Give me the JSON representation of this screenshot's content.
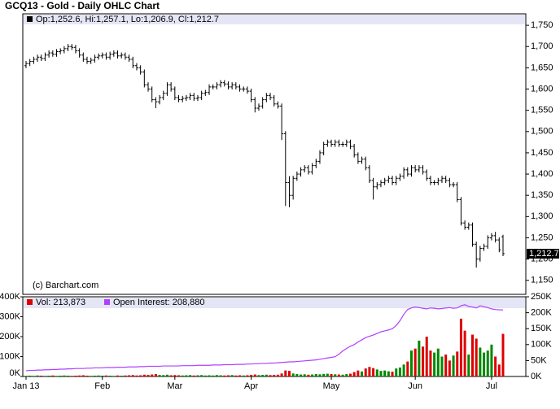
{
  "chart_data": [
    {
      "type": "ohlc",
      "title": "GCQ13 - Gold - Daily OHLC Chart",
      "annotation": "(c) Barchart.com",
      "ylim": [
        1117,
        1777
      ],
      "yticks": [
        {
          "value": 1150,
          "label": "1,150"
        },
        {
          "value": 1200,
          "label": "1,200"
        },
        {
          "value": 1250,
          "label": "1,250"
        },
        {
          "value": 1300,
          "label": "1,300"
        },
        {
          "value": 1350,
          "label": "1,350"
        },
        {
          "value": 1400,
          "label": "1,400"
        },
        {
          "value": 1450,
          "label": "1,450"
        },
        {
          "value": 1500,
          "label": "1,500"
        },
        {
          "value": 1550,
          "label": "1,550"
        },
        {
          "value": 1600,
          "label": "1,600"
        },
        {
          "value": 1650,
          "label": "1,650"
        },
        {
          "value": 1700,
          "label": "1,700"
        },
        {
          "value": 1750,
          "label": "1,750"
        }
      ],
      "last_label": {
        "value": 1212.7,
        "label": "1,212.7"
      },
      "series": [
        {
          "name": "Op:1,252.6, Hi:1,257.1, Lo:1,206.9, Cl:1,212.7",
          "color": "#000000",
          "open": [
            1655,
            1660,
            1665,
            1670,
            1675,
            1672,
            1680,
            1685,
            1682,
            1688,
            1690,
            1695,
            1700,
            1698,
            1690,
            1680,
            1670,
            1665,
            1668,
            1675,
            1678,
            1680,
            1675,
            1682,
            1685,
            1678,
            1680,
            1675,
            1670,
            1655,
            1650,
            1640,
            1610,
            1600,
            1575,
            1570,
            1580,
            1590,
            1610,
            1600,
            1580,
            1575,
            1578,
            1580,
            1585,
            1578,
            1580,
            1590,
            1592,
            1605,
            1605,
            1610,
            1615,
            1612,
            1605,
            1610,
            1605,
            1600,
            1600,
            1595,
            1575,
            1555,
            1560,
            1575,
            1585,
            1580,
            1565,
            1560,
            1495,
            1380,
            1350,
            1390,
            1400,
            1410,
            1415,
            1405,
            1420,
            1430,
            1450,
            1470,
            1475,
            1470,
            1475,
            1470,
            1470,
            1475,
            1465,
            1445,
            1430,
            1435,
            1415,
            1385,
            1370,
            1375,
            1380,
            1385,
            1390,
            1380,
            1390,
            1395,
            1410,
            1400,
            1415,
            1410,
            1415,
            1405,
            1390,
            1380,
            1380,
            1385,
            1390,
            1385,
            1375,
            1375,
            1340,
            1285,
            1275,
            1280,
            1235,
            1200,
            1225,
            1230,
            1250,
            1255,
            1245,
            1252.6
          ],
          "high": [
            1666,
            1671,
            1676,
            1681,
            1681,
            1686,
            1691,
            1691,
            1694,
            1696,
            1701,
            1706,
            1706,
            1704,
            1696,
            1686,
            1676,
            1674,
            1681,
            1684,
            1686,
            1686,
            1688,
            1691,
            1691,
            1686,
            1686,
            1681,
            1676,
            1661,
            1656,
            1646,
            1616,
            1606,
            1581,
            1586,
            1596,
            1616,
            1616,
            1606,
            1586,
            1584,
            1586,
            1591,
            1591,
            1586,
            1596,
            1598,
            1611,
            1611,
            1616,
            1621,
            1621,
            1618,
            1616,
            1616,
            1611,
            1606,
            1606,
            1601,
            1581,
            1566,
            1581,
            1591,
            1591,
            1586,
            1571,
            1566,
            1501,
            1395,
            1396,
            1406,
            1416,
            1421,
            1421,
            1426,
            1436,
            1456,
            1476,
            1481,
            1481,
            1481,
            1481,
            1476,
            1481,
            1481,
            1471,
            1451,
            1441,
            1441,
            1421,
            1391,
            1381,
            1386,
            1391,
            1396,
            1396,
            1396,
            1401,
            1416,
            1416,
            1421,
            1421,
            1421,
            1421,
            1411,
            1396,
            1386,
            1391,
            1396,
            1396,
            1391,
            1381,
            1381,
            1346,
            1291,
            1286,
            1286,
            1241,
            1231,
            1236,
            1256,
            1261,
            1264,
            1251,
            1257.1
          ],
          "low": [
            1649,
            1654,
            1659,
            1664,
            1666,
            1666,
            1674,
            1676,
            1676,
            1682,
            1684,
            1689,
            1692,
            1684,
            1674,
            1664,
            1659,
            1659,
            1662,
            1669,
            1672,
            1669,
            1669,
            1676,
            1672,
            1672,
            1669,
            1664,
            1649,
            1644,
            1634,
            1604,
            1594,
            1569,
            1555,
            1564,
            1574,
            1584,
            1594,
            1574,
            1569,
            1569,
            1572,
            1574,
            1572,
            1572,
            1574,
            1584,
            1586,
            1599,
            1599,
            1604,
            1606,
            1599,
            1599,
            1599,
            1594,
            1594,
            1589,
            1569,
            1545,
            1549,
            1554,
            1569,
            1574,
            1559,
            1554,
            1480,
            1325,
            1322,
            1340,
            1384,
            1394,
            1404,
            1399,
            1399,
            1414,
            1424,
            1444,
            1464,
            1464,
            1464,
            1464,
            1464,
            1464,
            1459,
            1439,
            1424,
            1424,
            1409,
            1379,
            1340,
            1364,
            1369,
            1374,
            1379,
            1374,
            1374,
            1384,
            1389,
            1394,
            1394,
            1404,
            1404,
            1399,
            1384,
            1374,
            1374,
            1374,
            1379,
            1379,
            1369,
            1369,
            1334,
            1279,
            1269,
            1269,
            1229,
            1180,
            1194,
            1219,
            1224,
            1244,
            1239,
            1216,
            1206.9
          ],
          "close": [
            1660,
            1665,
            1670,
            1675,
            1672,
            1680,
            1685,
            1682,
            1688,
            1690,
            1695,
            1700,
            1698,
            1690,
            1680,
            1670,
            1665,
            1668,
            1675,
            1678,
            1680,
            1675,
            1682,
            1685,
            1678,
            1680,
            1675,
            1670,
            1655,
            1650,
            1640,
            1610,
            1600,
            1575,
            1570,
            1580,
            1590,
            1610,
            1600,
            1580,
            1575,
            1578,
            1580,
            1585,
            1578,
            1580,
            1590,
            1592,
            1605,
            1605,
            1610,
            1615,
            1612,
            1605,
            1610,
            1605,
            1600,
            1600,
            1595,
            1575,
            1555,
            1560,
            1575,
            1585,
            1580,
            1565,
            1560,
            1495,
            1380,
            1350,
            1390,
            1400,
            1410,
            1415,
            1405,
            1420,
            1430,
            1450,
            1470,
            1475,
            1470,
            1475,
            1470,
            1470,
            1475,
            1465,
            1445,
            1430,
            1435,
            1415,
            1385,
            1370,
            1375,
            1380,
            1385,
            1390,
            1380,
            1390,
            1395,
            1410,
            1400,
            1415,
            1410,
            1415,
            1405,
            1390,
            1380,
            1380,
            1385,
            1390,
            1385,
            1375,
            1375,
            1340,
            1285,
            1275,
            1280,
            1235,
            1200,
            1225,
            1230,
            1250,
            1255,
            1245,
            1222,
            1212.7
          ]
        }
      ]
    },
    {
      "type": "bar",
      "categories": [
        "Jan 13",
        null,
        null,
        null,
        null,
        null,
        null,
        null,
        null,
        null,
        null,
        null,
        null,
        null,
        null,
        null,
        null,
        null,
        null,
        null,
        "Feb",
        null,
        null,
        null,
        null,
        null,
        null,
        null,
        null,
        null,
        null,
        null,
        null,
        null,
        null,
        null,
        null,
        null,
        null,
        "Mar",
        null,
        null,
        null,
        null,
        null,
        null,
        null,
        null,
        null,
        null,
        null,
        null,
        null,
        null,
        null,
        null,
        null,
        null,
        null,
        "Apr",
        null,
        null,
        null,
        null,
        null,
        null,
        null,
        null,
        null,
        null,
        null,
        null,
        null,
        null,
        null,
        null,
        null,
        null,
        null,
        null,
        "May",
        null,
        null,
        null,
        null,
        null,
        null,
        null,
        null,
        null,
        null,
        null,
        null,
        null,
        null,
        null,
        null,
        null,
        null,
        null,
        null,
        null,
        "Jun",
        null,
        null,
        null,
        null,
        null,
        null,
        null,
        null,
        null,
        null,
        null,
        null,
        null,
        null,
        null,
        null,
        null,
        null,
        null,
        "Jul",
        null,
        null,
        null
      ],
      "ylim": [
        0,
        400000
      ],
      "yticks": [
        {
          "value": 0,
          "label": "0K"
        },
        {
          "value": 100000,
          "label": "100K"
        },
        {
          "value": 200000,
          "label": "200K"
        },
        {
          "value": 300000,
          "label": "300K"
        },
        {
          "value": 400000,
          "label": "400K"
        }
      ],
      "y2lim": [
        0,
        250000
      ],
      "y2ticks": [
        {
          "value": 0,
          "label": "0K"
        },
        {
          "value": 50000,
          "label": "50K"
        },
        {
          "value": 100000,
          "label": "100K"
        },
        {
          "value": 150000,
          "label": "150K"
        },
        {
          "value": 200000,
          "label": "200K"
        },
        {
          "value": 250000,
          "label": "250K"
        }
      ],
      "series": [
        {
          "name": "Vol: 213,873",
          "color": "#dd0000",
          "up_color": "#008800",
          "values": [
            3000,
            4000,
            3000,
            5000,
            4000,
            3000,
            4000,
            5000,
            3000,
            4000,
            5000,
            4000,
            3000,
            4000,
            5000,
            6000,
            4000,
            3000,
            4000,
            5000,
            4000,
            5000,
            4000,
            3000,
            5000,
            4000,
            5000,
            6000,
            7000,
            5000,
            6000,
            9000,
            8000,
            10000,
            12000,
            8000,
            7000,
            9000,
            6000,
            7000,
            6000,
            5000,
            6000,
            7000,
            5000,
            6000,
            7000,
            5000,
            6000,
            5000,
            7000,
            6000,
            5000,
            6000,
            7000,
            5000,
            6000,
            5000,
            6000,
            8000,
            10000,
            7000,
            8000,
            9000,
            7000,
            8000,
            9000,
            15000,
            30000,
            28000,
            15000,
            12000,
            10000,
            11000,
            9000,
            10000,
            12000,
            11000,
            13000,
            14000,
            12000,
            11000,
            10000,
            9000,
            12000,
            14000,
            22000,
            30000,
            25000,
            40000,
            48000,
            42000,
            35000,
            28000,
            30000,
            26000,
            24000,
            40000,
            45000,
            60000,
            75000,
            130000,
            140000,
            180000,
            150000,
            200000,
            130000,
            120000,
            140000,
            100000,
            110000,
            80000,
            105000,
            125000,
            290000,
            230000,
            110000,
            210000,
            190000,
            145000,
            120000,
            130000,
            160000,
            100000,
            60000,
            213873
          ]
        },
        {
          "name": "Open Interest: 208,880",
          "type": "line",
          "axis": "y2",
          "color": "#b040ff",
          "values": [
            18000,
            19000,
            19000,
            20000,
            20000,
            21000,
            21000,
            22000,
            22000,
            23000,
            23000,
            24000,
            24000,
            25000,
            25000,
            25000,
            26000,
            26000,
            27000,
            27000,
            27000,
            28000,
            28000,
            28000,
            29000,
            29000,
            29000,
            30000,
            30000,
            30000,
            31000,
            31000,
            32000,
            32000,
            32000,
            32000,
            33000,
            33000,
            33000,
            33000,
            33000,
            34000,
            34000,
            34000,
            34000,
            35000,
            35000,
            35000,
            35000,
            36000,
            36000,
            36000,
            37000,
            37000,
            37000,
            38000,
            38000,
            38000,
            39000,
            39000,
            40000,
            40000,
            41000,
            41000,
            42000,
            42000,
            43000,
            44000,
            45000,
            46000,
            46000,
            47000,
            48000,
            49000,
            50000,
            51000,
            52000,
            54000,
            56000,
            58000,
            60000,
            62000,
            70000,
            80000,
            88000,
            95000,
            100000,
            108000,
            115000,
            122000,
            126000,
            130000,
            135000,
            140000,
            143000,
            146000,
            150000,
            160000,
            175000,
            195000,
            210000,
            215000,
            218000,
            216000,
            214000,
            212000,
            215000,
            214000,
            212000,
            213000,
            215000,
            216000,
            214000,
            215000,
            222000,
            225000,
            220000,
            218000,
            215000,
            222000,
            219000,
            216000,
            212000,
            210000,
            209000,
            208880
          ]
        }
      ]
    }
  ]
}
